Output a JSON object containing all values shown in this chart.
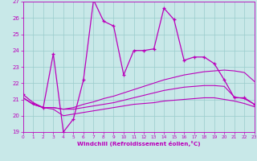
{
  "xlabel": "Windchill (Refroidissement éolien,°C)",
  "xlim": [
    0,
    23
  ],
  "ylim": [
    19,
    27
  ],
  "xticks": [
    0,
    1,
    2,
    3,
    4,
    5,
    6,
    7,
    8,
    9,
    10,
    11,
    12,
    13,
    14,
    15,
    16,
    17,
    18,
    19,
    20,
    21,
    22,
    23
  ],
  "yticks": [
    19,
    20,
    21,
    22,
    23,
    24,
    25,
    26,
    27
  ],
  "bg_color": "#c8e8e8",
  "grid_color": "#99cccc",
  "line_color": "#bb00bb",
  "line1_x": [
    0,
    1,
    2,
    3,
    4,
    5,
    6,
    7,
    8,
    9,
    10,
    11,
    12,
    13,
    14,
    15,
    16,
    17,
    18,
    19,
    20,
    21,
    22,
    23
  ],
  "line1_y": [
    21.3,
    20.8,
    20.5,
    23.8,
    19.0,
    19.8,
    22.2,
    27.1,
    25.8,
    25.5,
    22.5,
    24.0,
    24.0,
    24.1,
    26.6,
    25.9,
    23.4,
    23.6,
    23.6,
    23.2,
    22.2,
    21.1,
    21.1,
    20.7
  ],
  "line2_x": [
    0,
    1,
    2,
    3,
    4,
    5,
    6,
    7,
    8,
    9,
    10,
    11,
    12,
    13,
    14,
    15,
    16,
    17,
    18,
    19,
    20,
    21,
    22,
    23
  ],
  "line2_y": [
    21.1,
    20.7,
    20.5,
    20.5,
    20.4,
    20.5,
    20.7,
    20.85,
    21.05,
    21.2,
    21.4,
    21.6,
    21.8,
    22.0,
    22.2,
    22.35,
    22.5,
    22.6,
    22.7,
    22.75,
    22.8,
    22.75,
    22.65,
    22.1
  ],
  "line3_x": [
    0,
    1,
    2,
    3,
    4,
    5,
    6,
    7,
    8,
    9,
    10,
    11,
    12,
    13,
    14,
    15,
    16,
    17,
    18,
    19,
    20,
    21,
    22,
    23
  ],
  "line3_y": [
    21.1,
    20.7,
    20.5,
    20.5,
    20.4,
    20.4,
    20.5,
    20.6,
    20.7,
    20.8,
    20.95,
    21.1,
    21.25,
    21.4,
    21.55,
    21.65,
    21.75,
    21.8,
    21.85,
    21.85,
    21.8,
    21.15,
    21.05,
    20.7
  ],
  "line4_x": [
    0,
    1,
    2,
    3,
    4,
    5,
    6,
    7,
    8,
    9,
    10,
    11,
    12,
    13,
    14,
    15,
    16,
    17,
    18,
    19,
    20,
    21,
    22,
    23
  ],
  "line4_y": [
    21.1,
    20.7,
    20.5,
    20.4,
    20.0,
    20.1,
    20.2,
    20.3,
    20.4,
    20.5,
    20.6,
    20.7,
    20.75,
    20.8,
    20.9,
    20.95,
    21.0,
    21.05,
    21.1,
    21.1,
    21.0,
    20.9,
    20.75,
    20.55
  ]
}
